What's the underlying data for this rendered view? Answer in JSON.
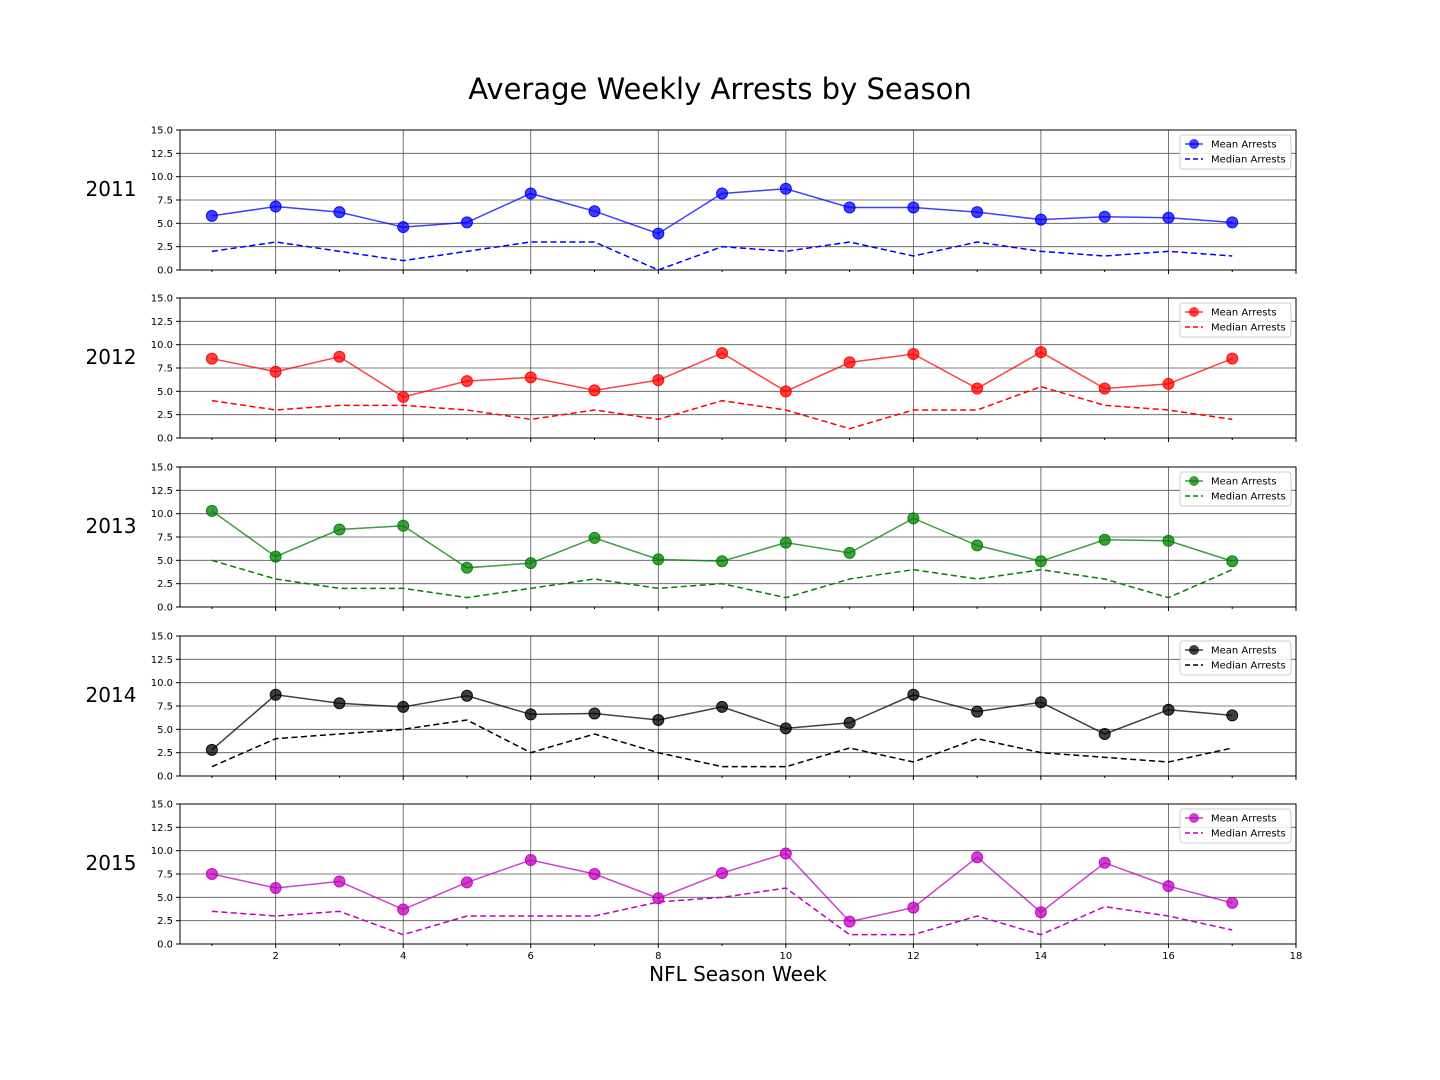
{
  "chart_data": {
    "type": "line",
    "title": "Average Weekly Arrests by Season",
    "xlabel": "NFL Season Week",
    "xlim": [
      0.5,
      18
    ],
    "ylim": [
      0,
      15
    ],
    "x_ticks": [
      2,
      4,
      6,
      8,
      10,
      12,
      14,
      16,
      18
    ],
    "y_ticks": [
      0.0,
      2.5,
      5.0,
      7.5,
      10.0,
      12.5,
      15.0
    ],
    "grid": true,
    "legend_position": "top-right",
    "x": [
      1,
      2,
      3,
      4,
      5,
      6,
      7,
      8,
      9,
      10,
      11,
      12,
      13,
      14,
      15,
      16,
      17
    ],
    "panels": [
      {
        "season": "2011",
        "color": "#0000ff",
        "series": [
          {
            "name": "Mean Arrests",
            "style": "solid-marker",
            "values": [
              5.8,
              6.8,
              6.2,
              4.6,
              5.1,
              8.2,
              6.3,
              3.9,
              8.2,
              8.7,
              6.7,
              6.7,
              6.2,
              5.4,
              5.7,
              5.6,
              5.1
            ]
          },
          {
            "name": "Median Arrests",
            "style": "dashed",
            "values": [
              2.0,
              3.0,
              2.0,
              1.0,
              2.0,
              3.0,
              3.0,
              0.0,
              2.5,
              2.0,
              3.0,
              1.5,
              3.0,
              2.0,
              1.5,
              2.0,
              1.5
            ]
          }
        ]
      },
      {
        "season": "2012",
        "color": "#ff0000",
        "series": [
          {
            "name": "Mean Arrests",
            "style": "solid-marker",
            "values": [
              8.5,
              7.1,
              8.7,
              4.4,
              6.1,
              6.5,
              5.1,
              6.2,
              9.1,
              5.0,
              8.1,
              9.0,
              5.3,
              9.2,
              5.3,
              5.8,
              8.5
            ]
          },
          {
            "name": "Median Arrests",
            "style": "dashed",
            "values": [
              4.0,
              3.0,
              3.5,
              3.5,
              3.0,
              2.0,
              3.0,
              2.0,
              4.0,
              3.0,
              1.0,
              3.0,
              3.0,
              5.5,
              3.5,
              3.0,
              2.0
            ]
          }
        ]
      },
      {
        "season": "2013",
        "color": "#008000",
        "series": [
          {
            "name": "Mean Arrests",
            "style": "solid-marker",
            "values": [
              10.3,
              5.4,
              8.3,
              8.7,
              4.2,
              4.7,
              7.4,
              5.1,
              4.9,
              6.9,
              5.8,
              9.5,
              6.6,
              4.9,
              7.2,
              7.1,
              4.9
            ]
          },
          {
            "name": "Median Arrests",
            "style": "dashed",
            "values": [
              5.0,
              3.0,
              2.0,
              2.0,
              1.0,
              2.0,
              3.0,
              2.0,
              2.5,
              1.0,
              3.0,
              4.0,
              3.0,
              4.0,
              3.0,
              1.0,
              4.0
            ]
          }
        ]
      },
      {
        "season": "2014",
        "color": "#000000",
        "series": [
          {
            "name": "Mean Arrests",
            "style": "solid-marker",
            "values": [
              2.8,
              8.7,
              7.8,
              7.4,
              8.6,
              6.6,
              6.7,
              6.0,
              7.4,
              5.1,
              5.7,
              8.7,
              6.9,
              7.9,
              4.5,
              7.1,
              6.5
            ]
          },
          {
            "name": "Median Arrests",
            "style": "dashed",
            "values": [
              1.0,
              4.0,
              4.5,
              5.0,
              6.0,
              2.5,
              4.5,
              2.5,
              1.0,
              1.0,
              3.0,
              1.5,
              4.0,
              2.5,
              2.0,
              1.5,
              3.0
            ]
          }
        ]
      },
      {
        "season": "2015",
        "color": "#bf00bf",
        "series": [
          {
            "name": "Mean Arrests",
            "style": "solid-marker",
            "values": [
              7.5,
              6.0,
              6.7,
              3.7,
              6.6,
              9.0,
              7.5,
              4.9,
              7.6,
              9.7,
              2.4,
              3.9,
              9.3,
              3.4,
              8.7,
              6.2,
              4.4
            ]
          },
          {
            "name": "Median Arrests",
            "style": "dashed",
            "values": [
              3.5,
              3.0,
              3.5,
              1.0,
              3.0,
              3.0,
              3.0,
              4.5,
              5.0,
              6.0,
              1.0,
              1.0,
              3.0,
              1.0,
              4.0,
              3.0,
              1.5
            ]
          }
        ]
      }
    ]
  }
}
